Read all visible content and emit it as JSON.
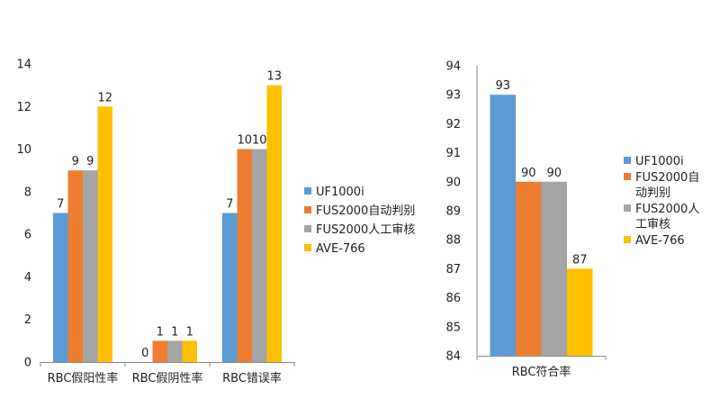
{
  "chart_data": [
    {
      "type": "bar",
      "categories": [
        "RBC假阳性率",
        "RBC假阴性率",
        "RBC错误率"
      ],
      "series": [
        {
          "name": "UF1000i",
          "color": "#5b9bd5",
          "values": [
            7,
            0,
            7
          ],
          "labels": [
            "7",
            "0",
            "7"
          ]
        },
        {
          "name": "FUS2000自动判别",
          "color": "#ed7d31",
          "values": [
            9,
            1,
            10
          ],
          "labels": [
            "9",
            "1",
            "10"
          ]
        },
        {
          "name": "FUS2000人工审核",
          "color": "#a5a5a5",
          "values": [
            9,
            1,
            10
          ],
          "labels": [
            "9",
            "1",
            "10"
          ]
        },
        {
          "name": "AVE-766",
          "color": "#ffc000",
          "values": [
            12,
            1,
            13
          ],
          "labels": [
            "12",
            "1",
            "13"
          ]
        }
      ],
      "ylim": [
        0,
        14
      ],
      "yticks": [
        "0",
        "2",
        "4",
        "6",
        "8",
        "10",
        "12",
        "14"
      ],
      "legend": "right",
      "legend_labels": [
        [
          "UF1000i"
        ],
        [
          "FUS2000自动判别"
        ],
        [
          "FUS2000人工审核"
        ],
        [
          "AVE-766"
        ]
      ]
    },
    {
      "type": "bar",
      "categories": [
        "RBC符合率"
      ],
      "series": [
        {
          "name": "UF1000i",
          "color": "#5b9bd5",
          "values": [
            93
          ],
          "labels": [
            "93"
          ]
        },
        {
          "name": "FUS2000自动判别",
          "color": "#ed7d31",
          "values": [
            90
          ],
          "labels": [
            "90"
          ]
        },
        {
          "name": "FUS2000人工审核",
          "color": "#a5a5a5",
          "values": [
            90
          ],
          "labels": [
            "90"
          ]
        },
        {
          "name": "AVE-766",
          "color": "#ffc000",
          "values": [
            87
          ],
          "labels": [
            "87"
          ]
        }
      ],
      "ylim": [
        84,
        94
      ],
      "yticks": [
        "84",
        "85",
        "86",
        "87",
        "88",
        "89",
        "90",
        "91",
        "92",
        "93",
        "94"
      ],
      "legend": "right",
      "legend_labels": [
        [
          "UF1000i"
        ],
        [
          "FUS2000自",
          "动判别"
        ],
        [
          "FUS2000人",
          "工审核"
        ],
        [
          "AVE-766"
        ]
      ]
    }
  ]
}
